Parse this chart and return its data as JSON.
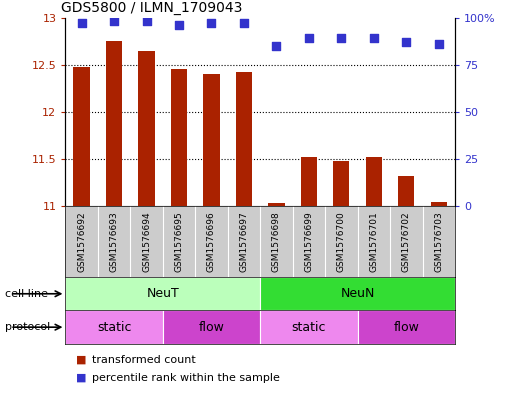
{
  "title": "GDS5800 / ILMN_1709043",
  "samples": [
    "GSM1576692",
    "GSM1576693",
    "GSM1576694",
    "GSM1576695",
    "GSM1576696",
    "GSM1576697",
    "GSM1576698",
    "GSM1576699",
    "GSM1576700",
    "GSM1576701",
    "GSM1576702",
    "GSM1576703"
  ],
  "bar_values": [
    12.48,
    12.75,
    12.65,
    12.46,
    12.4,
    12.42,
    11.04,
    11.52,
    11.48,
    11.52,
    11.32,
    11.05
  ],
  "dot_values": [
    97,
    98,
    98,
    96,
    97,
    97,
    85,
    89,
    89,
    89,
    87,
    86
  ],
  "ylim_left": [
    11,
    13
  ],
  "ylim_right": [
    0,
    100
  ],
  "yticks_left": [
    11,
    11.5,
    12,
    12.5,
    13
  ],
  "ytick_labels_right": [
    "0",
    "25",
    "50",
    "75",
    "100%"
  ],
  "bar_color": "#AA2200",
  "dot_color": "#3333CC",
  "cell_line_groups": [
    {
      "label": "NeuT",
      "start": 0,
      "end": 5,
      "color": "#BBFFBB"
    },
    {
      "label": "NeuN",
      "start": 6,
      "end": 11,
      "color": "#33DD33"
    }
  ],
  "protocol_groups": [
    {
      "label": "static",
      "start": 0,
      "end": 2,
      "color": "#EE88EE"
    },
    {
      "label": "flow",
      "start": 3,
      "end": 5,
      "color": "#CC44CC"
    },
    {
      "label": "static",
      "start": 6,
      "end": 8,
      "color": "#EE88EE"
    },
    {
      "label": "flow",
      "start": 9,
      "end": 11,
      "color": "#CC44CC"
    }
  ],
  "cell_line_label": "cell line",
  "protocol_label": "protocol",
  "legend_bar_label": "transformed count",
  "legend_dot_label": "percentile rank within the sample",
  "tick_area_bg": "#CCCCCC",
  "bar_width": 0.5,
  "dot_size": 28,
  "gridline_dotted_color": "#555555"
}
